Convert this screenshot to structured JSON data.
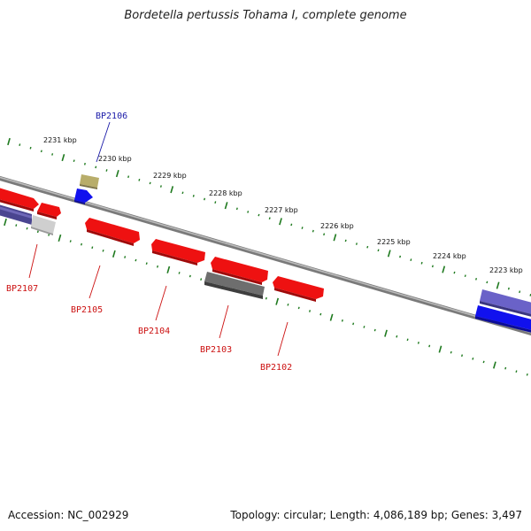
{
  "title": "Bordetella pertussis Tohama I, complete genome",
  "footer": {
    "accession": "Accession: NC_002929",
    "stats": "Topology: circular; Length: 4,086,189 bp; Genes: 3,497"
  },
  "scale_labels": [
    "2231 kbp",
    "2230 kbp",
    "2229 kbp",
    "2228 kbp",
    "2227 kbp",
    "2226 kbp",
    "2225 kbp",
    "2224 kbp",
    "2223 kbp"
  ],
  "gene_labels": [
    {
      "id": "BP2106",
      "color": "#1a1aa8"
    },
    {
      "id": "BP2107",
      "color": "#cc1111"
    },
    {
      "id": "BP2105",
      "color": "#cc1111"
    },
    {
      "id": "BP2104",
      "color": "#cc1111"
    },
    {
      "id": "BP2103",
      "color": "#cc1111"
    },
    {
      "id": "BP2102",
      "color": "#cc1111"
    }
  ],
  "colors": {
    "backbone": "#8c8c8c",
    "tick": "#1f7a1f",
    "cds_red": "#ee1111",
    "gene_blue": "#1111ee",
    "gene_purple": "#6a62c8",
    "gene_gray": "#6e6e6e",
    "gene_olive": "#b8ad6a",
    "gene_light": "#c8c8c8"
  }
}
